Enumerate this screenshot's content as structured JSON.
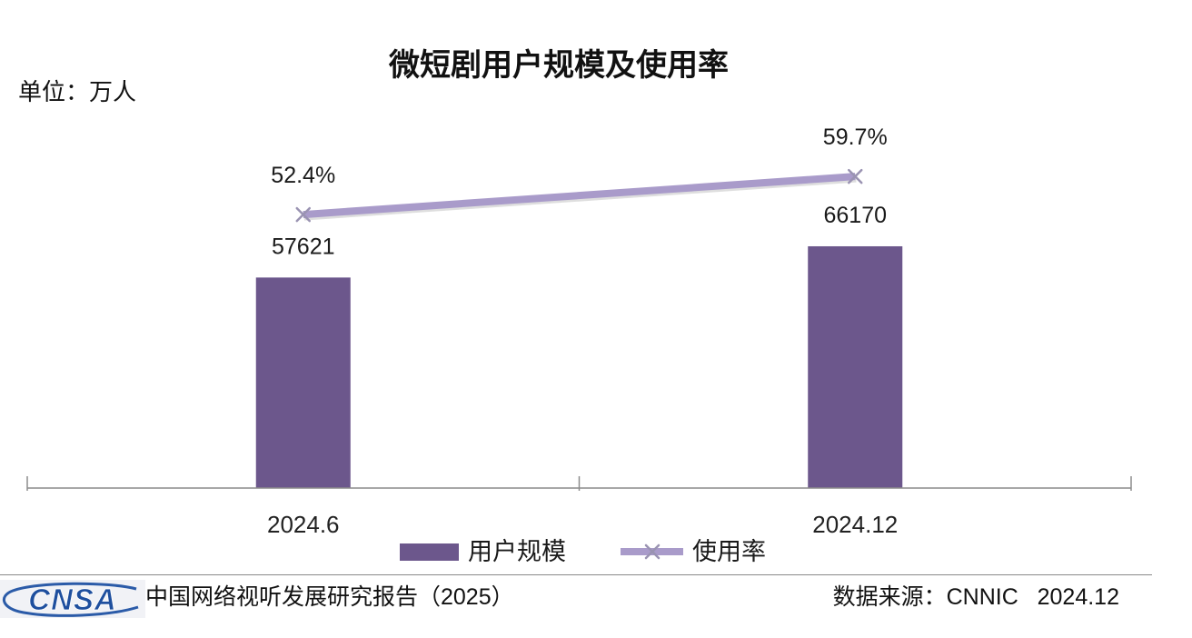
{
  "chart_data": {
    "type": "bar",
    "title": "微短剧用户规模及使用率",
    "unit_label": "单位：万人",
    "categories": [
      "2024.6",
      "2024.12"
    ],
    "series": [
      {
        "name": "用户规模",
        "type": "bar",
        "axis": "primary",
        "color": "#6C578C",
        "values": [
          57621,
          66170
        ],
        "data_labels": [
          "57621",
          "66170"
        ]
      },
      {
        "name": "使用率",
        "type": "line",
        "axis": "secondary",
        "color": "#A99BCA",
        "marker": "x",
        "values": [
          52.4,
          59.7
        ],
        "data_labels": [
          "52.4%",
          "59.7%"
        ]
      }
    ],
    "ylim": [
      0,
      100000
    ],
    "y2lim": [
      0,
      70
    ],
    "grid": false,
    "legend": "bottom-center"
  },
  "footer": {
    "logo_text": "CNSA",
    "report_title": "中国网络视听发展研究报告（2025）",
    "source": "数据来源：CNNIC   2024.12"
  }
}
